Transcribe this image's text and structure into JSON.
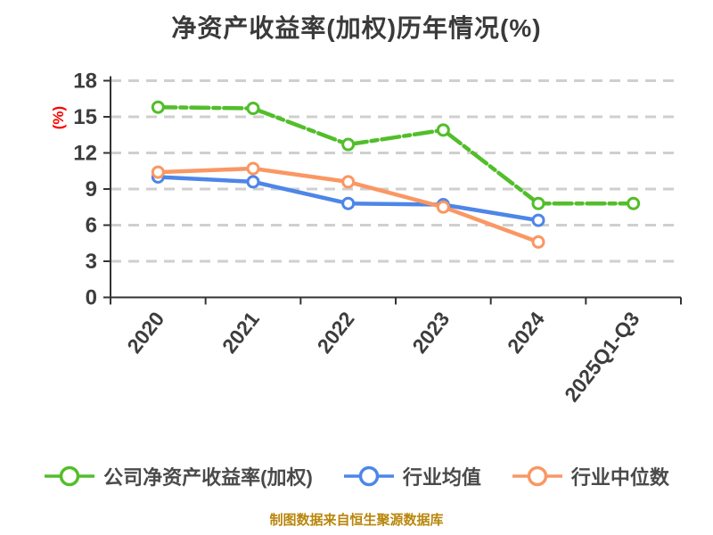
{
  "title": "净资产收益率(加权)历年情况(%)",
  "footer": "制图数据来自恒生聚源数据库",
  "chart_data": {
    "type": "line",
    "categories": [
      "2020",
      "2021",
      "2022",
      "2023",
      "2024",
      "2025Q1-Q3"
    ],
    "series": [
      {
        "name": "公司净资产收益率(加权)",
        "color": "#52be2a",
        "line_style": "dash-dot",
        "values": [
          15.8,
          15.7,
          12.7,
          13.9,
          7.8,
          7.8
        ]
      },
      {
        "name": "行业均值",
        "color": "#4d86e8",
        "line_style": "solid",
        "values": [
          10.0,
          9.6,
          7.8,
          7.7,
          6.4,
          null
        ]
      },
      {
        "name": "行业中位数",
        "color": "#fa9763",
        "line_style": "solid",
        "values": [
          10.4,
          10.7,
          9.6,
          7.5,
          4.6,
          null
        ]
      }
    ],
    "xlabel": "",
    "ylabel": "(%)",
    "ylim": [
      0,
      18
    ],
    "yticks": [
      0,
      3,
      6,
      9,
      12,
      15,
      18
    ],
    "x_tick_rotation_deg": 52,
    "grid": "horizontal-dashed",
    "legend_position": "bottom",
    "marker": "white-filled-circle"
  },
  "colors": {
    "title_text": "#3a3a3a",
    "tick_text": "#3d3d3d",
    "axis_line": "#333333",
    "gridline": "#cfcfcf",
    "ylabel_text": "#ff0000",
    "footer_text": "#b8860b",
    "background": "#ffffff"
  }
}
